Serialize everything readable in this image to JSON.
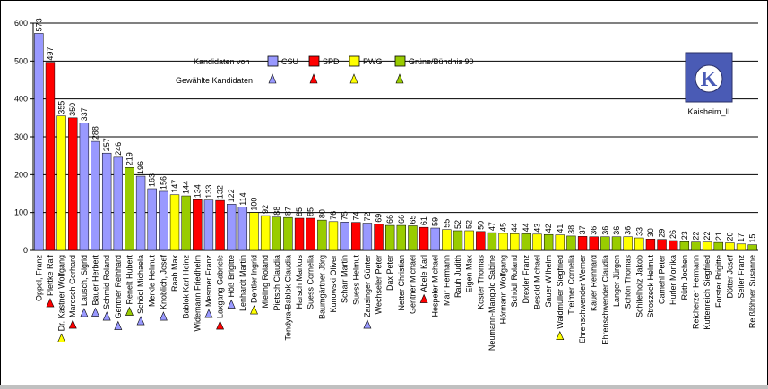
{
  "chart_data": {
    "type": "bar",
    "ylim": [
      0,
      600
    ],
    "yticks": [
      0,
      100,
      200,
      300,
      400,
      500,
      600
    ],
    "colors": {
      "CSU": "#9999ff",
      "SPD": "#ff0000",
      "PWG": "#ffff00",
      "Gruene": "#99cc00",
      "axis": "#000000",
      "grid": "#000000"
    },
    "legend": {
      "title": "Kandidaten von",
      "elected_title": "Gewählte Kandidaten",
      "entries": [
        {
          "key": "CSU",
          "label": "CSU"
        },
        {
          "key": "SPD",
          "label": "SPD"
        },
        {
          "key": "PWG",
          "label": "PWG"
        },
        {
          "key": "Gruene",
          "label": "Grüne/Bündnis 90"
        }
      ]
    },
    "annotation": "Kaisheim_II",
    "bars": [
      {
        "name": "Oppel, Franz",
        "value": 573,
        "party": "CSU",
        "elected": false
      },
      {
        "name": "Plettke Ralf",
        "value": 497,
        "party": "SPD",
        "elected": true
      },
      {
        "name": "Dr. Kastner Wolfgang",
        "value": 355,
        "party": "PWG",
        "elected": true
      },
      {
        "name": "Maresch Gerhard",
        "value": 350,
        "party": "SPD",
        "elected": true
      },
      {
        "name": "Lausch, Sigrid",
        "value": 337,
        "party": "CSU",
        "elected": true
      },
      {
        "name": "Bauer Herbert",
        "value": 288,
        "party": "CSU",
        "elected": true
      },
      {
        "name": "Schmid Roland",
        "value": 257,
        "party": "CSU",
        "elected": true
      },
      {
        "name": "Gentner Reinhard",
        "value": 246,
        "party": "CSU",
        "elected": true
      },
      {
        "name": "Renelt Hubert",
        "value": 219,
        "party": "Gruene",
        "elected": true
      },
      {
        "name": "Schödl Michaela",
        "value": 196,
        "party": "CSU",
        "elected": true
      },
      {
        "name": "Merkle Helmut",
        "value": 163,
        "party": "CSU",
        "elected": false
      },
      {
        "name": "Knoblich, Josef",
        "value": 156,
        "party": "CSU",
        "elected": true
      },
      {
        "name": "Raab Max",
        "value": 147,
        "party": "PWG",
        "elected": false
      },
      {
        "name": "Bablok Karl Heinz",
        "value": 144,
        "party": "Gruene",
        "elected": false
      },
      {
        "name": "Widemann Friedhelm",
        "value": 134,
        "party": "SPD",
        "elected": false
      },
      {
        "name": "Mesmer Franz",
        "value": 133,
        "party": "CSU",
        "elected": true
      },
      {
        "name": "Laxgang Gabriele",
        "value": 132,
        "party": "SPD",
        "elected": true
      },
      {
        "name": "Höß Brigitte",
        "value": 122,
        "party": "CSU",
        "elected": true
      },
      {
        "name": "Lenhardt Martin",
        "value": 114,
        "party": "CSU",
        "elected": false
      },
      {
        "name": "Dentler Ingrid",
        "value": 100,
        "party": "PWG",
        "elected": true
      },
      {
        "name": "Mieling Roland",
        "value": 92,
        "party": "PWG",
        "elected": false
      },
      {
        "name": "Pietsch Claudia",
        "value": 88,
        "party": "Gruene",
        "elected": false
      },
      {
        "name": "Tendyra-Bablok Claudia",
        "value": 87,
        "party": "Gruene",
        "elected": false
      },
      {
        "name": "Harsch Markus",
        "value": 85,
        "party": "SPD",
        "elected": false
      },
      {
        "name": "Suess Cornelia",
        "value": 85,
        "party": "SPD",
        "elected": false
      },
      {
        "name": "Baumgärtner Jörg",
        "value": 80,
        "party": "Gruene",
        "elected": false
      },
      {
        "name": "Kunowski Oliver",
        "value": 76,
        "party": "PWG",
        "elected": false
      },
      {
        "name": "Scharr Martin",
        "value": 75,
        "party": "CSU",
        "elected": false
      },
      {
        "name": "Suess Helmut",
        "value": 74,
        "party": "SPD",
        "elected": false
      },
      {
        "name": "Zausinger Günter",
        "value": 72,
        "party": "CSU",
        "elected": true
      },
      {
        "name": "Wechseler Peter",
        "value": 69,
        "party": "SPD",
        "elected": false
      },
      {
        "name": "Dax Peter",
        "value": 66,
        "party": "Gruene",
        "elected": false
      },
      {
        "name": "Netter Christian",
        "value": 66,
        "party": "Gruene",
        "elected": false
      },
      {
        "name": "Gentner Michael",
        "value": 65,
        "party": "Gruene",
        "elected": false
      },
      {
        "name": "Abele Karl",
        "value": 61,
        "party": "SPD",
        "elected": true
      },
      {
        "name": "Hespeler Michael",
        "value": 59,
        "party": "CSU",
        "elected": false
      },
      {
        "name": "Mair Hermann",
        "value": 55,
        "party": "PWG",
        "elected": false
      },
      {
        "name": "Rauh Judith",
        "value": 52,
        "party": "Gruene",
        "elected": false
      },
      {
        "name": "Eigen Max",
        "value": 52,
        "party": "PWG",
        "elected": false
      },
      {
        "name": "Koster Thomas",
        "value": 50,
        "party": "SPD",
        "elected": false
      },
      {
        "name": "Neumann-Mangold Sabine",
        "value": 47,
        "party": "Gruene",
        "elected": false
      },
      {
        "name": "Hörmann Wolfgang",
        "value": 45,
        "party": "PWG",
        "elected": false
      },
      {
        "name": "Schödl Roland",
        "value": 44,
        "party": "PWG",
        "elected": false
      },
      {
        "name": "Drexler Franz",
        "value": 44,
        "party": "Gruene",
        "elected": false
      },
      {
        "name": "Besold Michael",
        "value": 43,
        "party": "PWG",
        "elected": false
      },
      {
        "name": "Sauer Wilhelm",
        "value": 42,
        "party": "Gruene",
        "elected": false
      },
      {
        "name": "Waldmüller Siegfried",
        "value": 41,
        "party": "PWG",
        "elected": true
      },
      {
        "name": "Treimer Cornelia",
        "value": 38,
        "party": "Gruene",
        "elected": false
      },
      {
        "name": "Ehrenschwender Werner",
        "value": 37,
        "party": "SPD",
        "elected": false
      },
      {
        "name": "Kauer Reinhard",
        "value": 36,
        "party": "SPD",
        "elected": false
      },
      {
        "name": "Ehrenschwender Claudia",
        "value": 36,
        "party": "Gruene",
        "elected": false
      },
      {
        "name": "Langer Jürgen",
        "value": 36,
        "party": "Gruene",
        "elected": false
      },
      {
        "name": "Schön Thomas",
        "value": 36,
        "party": "PWG",
        "elected": false
      },
      {
        "name": "Schifelholz Jakob",
        "value": 33,
        "party": "PWG",
        "elected": false
      },
      {
        "name": "Stroszeck Helmut",
        "value": 30,
        "party": "SPD",
        "elected": false
      },
      {
        "name": "Camehl Peter",
        "value": 29,
        "party": "SPD",
        "elected": false
      },
      {
        "name": "Hurler Monika",
        "value": 26,
        "party": "SPD",
        "elected": false
      },
      {
        "name": "Rüth Jochen",
        "value": 23,
        "party": "Gruene",
        "elected": false
      },
      {
        "name": "Reicherzer Hermann",
        "value": 22,
        "party": "Gruene",
        "elected": false
      },
      {
        "name": "Kuttenreich Siegfried",
        "value": 22,
        "party": "PWG",
        "elected": false
      },
      {
        "name": "Forster Brigitte",
        "value": 21,
        "party": "Gruene",
        "elected": false
      },
      {
        "name": "Dötter Josef",
        "value": 20,
        "party": "PWG",
        "elected": false
      },
      {
        "name": "Seiler Franz",
        "value": 17,
        "party": "PWG",
        "elected": false
      },
      {
        "name": "Reißlöhner Susanne",
        "value": 15,
        "party": "Gruene",
        "elected": false
      }
    ]
  }
}
